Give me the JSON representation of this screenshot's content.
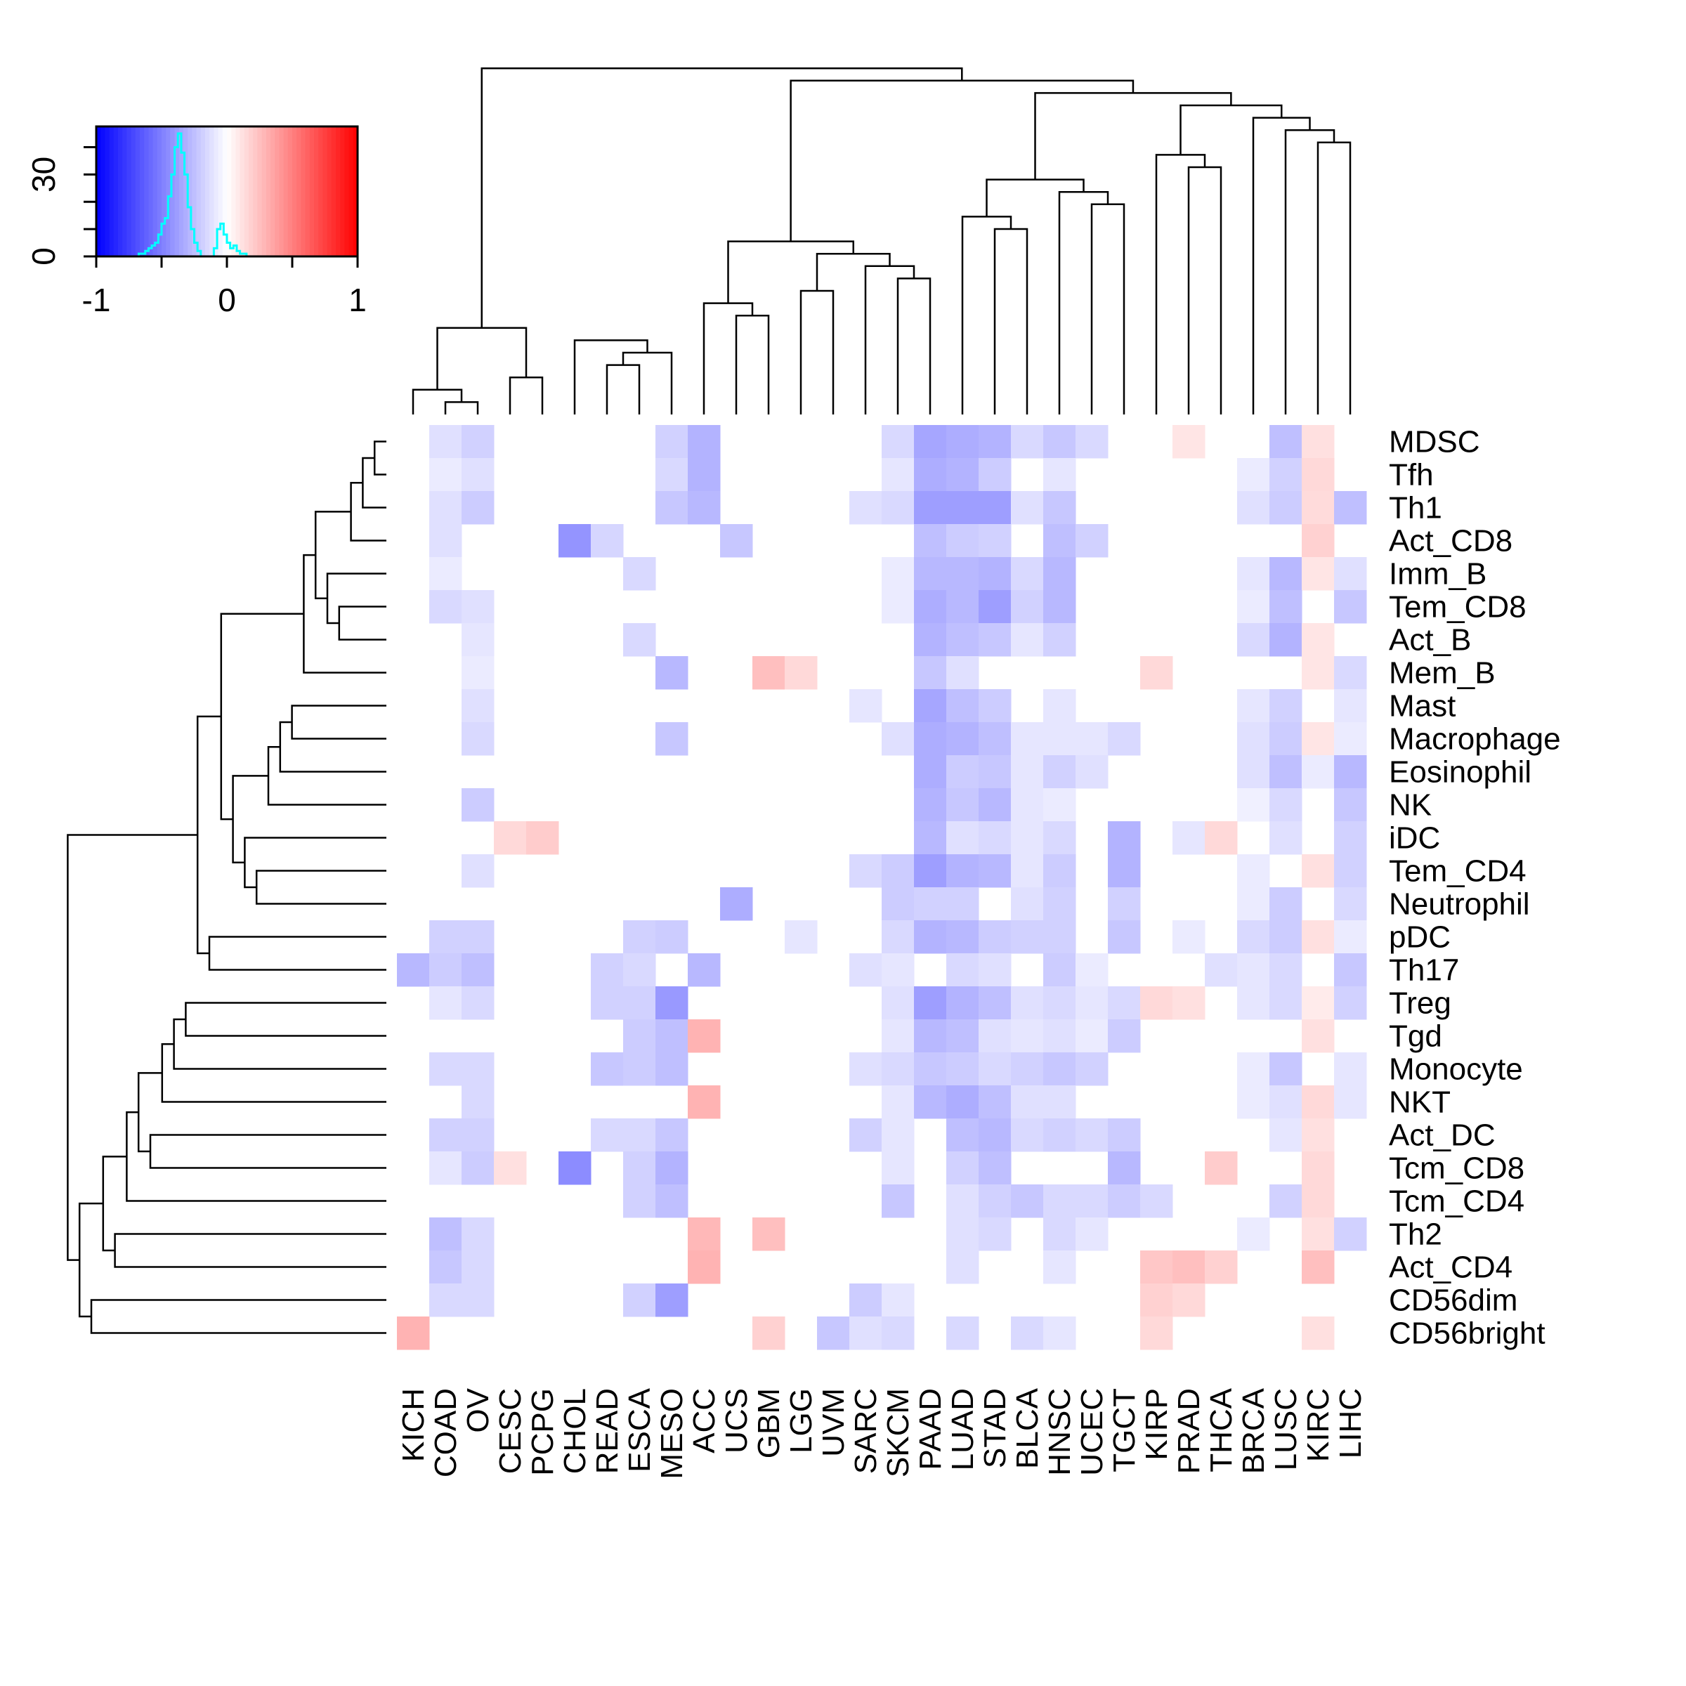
{
  "chart_data": {
    "type": "heatmap",
    "rows": [
      "MDSC",
      "Tfh",
      "Th1",
      "Act_CD8",
      "Imm_B",
      "Tem_CD8",
      "Act_B",
      "Mem_B",
      "Mast",
      "Macrophage",
      "Eosinophil",
      "NK",
      "iDC",
      "Tem_CD4",
      "Neutrophil",
      "pDC",
      "Th17",
      "Treg",
      "Tgd",
      "Monocyte",
      "NKT",
      "Act_DC",
      "Tcm_CD8",
      "Tcm_CD4",
      "Th2",
      "Act_CD4",
      "CD56dim",
      "CD56bright"
    ],
    "columns": [
      "KICH",
      "COAD",
      "OV",
      "CESC",
      "PCPG",
      "CHOL",
      "READ",
      "ESCA",
      "MESO",
      "ACC",
      "UCS",
      "GBM",
      "LGG",
      "UVM",
      "SARC",
      "SKCM",
      "PAAD",
      "LUAD",
      "STAD",
      "BLCA",
      "HNSC",
      "UCEC",
      "TGCT",
      "KIRP",
      "PRAD",
      "THCA",
      "BRCA",
      "LUSC",
      "KIRC",
      "LIHC"
    ],
    "values": [
      [
        0,
        -0.12,
        -0.18,
        0,
        0,
        0,
        0,
        0,
        -0.18,
        -0.3,
        0,
        0,
        0,
        0,
        0,
        -0.15,
        -0.35,
        -0.32,
        -0.3,
        -0.15,
        -0.22,
        -0.15,
        0,
        0,
        0.1,
        0,
        0,
        -0.25,
        0.12,
        0
      ],
      [
        0,
        -0.08,
        -0.12,
        0,
        0,
        0,
        0,
        0,
        -0.15,
        -0.3,
        0,
        0,
        0,
        0,
        0,
        -0.1,
        -0.32,
        -0.3,
        -0.2,
        0,
        -0.1,
        0,
        0,
        0,
        0,
        0,
        -0.08,
        -0.18,
        0.15,
        0
      ],
      [
        0,
        -0.12,
        -0.2,
        0,
        0,
        0,
        0,
        0,
        -0.22,
        -0.28,
        0,
        0,
        0,
        0,
        -0.12,
        -0.15,
        -0.38,
        -0.38,
        -0.38,
        -0.12,
        -0.22,
        0,
        0,
        0,
        0,
        0,
        -0.12,
        -0.2,
        0.14,
        -0.25
      ],
      [
        0,
        -0.12,
        0,
        0,
        0,
        -0.42,
        -0.16,
        0,
        0,
        0,
        -0.22,
        0,
        0,
        0,
        0,
        0,
        -0.25,
        -0.2,
        -0.18,
        0,
        -0.25,
        -0.18,
        0,
        0,
        0,
        0,
        0,
        0,
        0.18,
        0
      ],
      [
        0,
        -0.08,
        0,
        0,
        0,
        0,
        0,
        -0.15,
        0,
        0,
        0,
        0,
        0,
        0,
        0,
        -0.08,
        -0.28,
        -0.28,
        -0.3,
        -0.15,
        -0.28,
        0,
        0,
        0,
        0,
        0,
        -0.1,
        -0.28,
        0.1,
        -0.12
      ],
      [
        0,
        -0.15,
        -0.12,
        0,
        0,
        0,
        0,
        0,
        0,
        0,
        0,
        0,
        0,
        0,
        0,
        -0.08,
        -0.32,
        -0.28,
        -0.38,
        -0.18,
        -0.28,
        0,
        0,
        0,
        0,
        0,
        -0.08,
        -0.25,
        0,
        -0.22
      ],
      [
        0,
        0,
        -0.1,
        0,
        0,
        0,
        0,
        -0.15,
        0,
        0,
        0,
        0,
        0,
        0,
        0,
        0,
        -0.3,
        -0.25,
        -0.22,
        -0.1,
        -0.18,
        0,
        0,
        0,
        0,
        0,
        -0.15,
        -0.3,
        0.1,
        0
      ],
      [
        0,
        0,
        -0.08,
        0,
        0,
        0,
        0,
        0,
        -0.28,
        0,
        0,
        0.25,
        0.15,
        0,
        0,
        0,
        -0.22,
        -0.12,
        0,
        0,
        0,
        0,
        0,
        0.15,
        0,
        0,
        0,
        0,
        0.1,
        -0.15
      ],
      [
        0,
        0,
        -0.12,
        0,
        0,
        0,
        0,
        0,
        0,
        0,
        0,
        0,
        0,
        0,
        -0.1,
        0,
        -0.35,
        -0.25,
        -0.2,
        0,
        -0.1,
        0,
        0,
        0,
        0,
        0,
        -0.1,
        -0.18,
        0,
        -0.1
      ],
      [
        0,
        0,
        -0.15,
        0,
        0,
        0,
        0,
        0,
        -0.22,
        0,
        0,
        0,
        0,
        0,
        0,
        -0.12,
        -0.32,
        -0.3,
        -0.25,
        -0.1,
        -0.1,
        -0.1,
        -0.15,
        0,
        0,
        0,
        -0.12,
        -0.2,
        0.1,
        -0.08
      ],
      [
        0,
        0,
        0,
        0,
        0,
        0,
        0,
        0,
        0,
        0,
        0,
        0,
        0,
        0,
        0,
        0,
        -0.32,
        -0.2,
        -0.22,
        -0.1,
        -0.18,
        -0.12,
        0,
        0,
        0,
        0,
        -0.12,
        -0.25,
        -0.08,
        -0.28
      ],
      [
        0,
        0,
        -0.2,
        0,
        0,
        0,
        0,
        0,
        0,
        0,
        0,
        0,
        0,
        0,
        0,
        0,
        -0.3,
        -0.22,
        -0.28,
        -0.1,
        -0.08,
        0,
        0,
        0,
        0,
        0,
        -0.06,
        -0.15,
        0,
        -0.22
      ],
      [
        0,
        0,
        0,
        0.15,
        0.2,
        0,
        0,
        0,
        0,
        0,
        0,
        0,
        0,
        0,
        0,
        0,
        -0.28,
        -0.12,
        -0.15,
        -0.1,
        -0.15,
        0,
        -0.3,
        0,
        -0.1,
        0.15,
        0,
        -0.12,
        0,
        -0.18
      ],
      [
        0,
        0,
        -0.12,
        0,
        0,
        0,
        0,
        0,
        0,
        0,
        0,
        0,
        0,
        0,
        -0.15,
        -0.2,
        -0.38,
        -0.3,
        -0.28,
        -0.1,
        -0.2,
        0,
        -0.3,
        0,
        0,
        0,
        -0.08,
        0,
        0.12,
        -0.18
      ],
      [
        0,
        0,
        0,
        0,
        0,
        0,
        0,
        0,
        0,
        0,
        -0.32,
        0,
        0,
        0,
        0,
        -0.2,
        -0.18,
        -0.18,
        0,
        -0.12,
        -0.18,
        0,
        -0.18,
        0,
        0,
        0,
        -0.08,
        -0.2,
        0,
        -0.15
      ],
      [
        0,
        -0.18,
        -0.18,
        0,
        0,
        0,
        0,
        -0.18,
        -0.2,
        0,
        0,
        0,
        -0.1,
        0,
        0,
        -0.15,
        -0.3,
        -0.28,
        -0.2,
        -0.18,
        -0.18,
        0,
        -0.22,
        0,
        -0.08,
        0,
        -0.15,
        -0.2,
        0.12,
        -0.08
      ],
      [
        -0.28,
        -0.2,
        -0.25,
        0,
        0,
        0,
        -0.18,
        -0.15,
        0,
        -0.28,
        0,
        0,
        0,
        0,
        -0.12,
        -0.1,
        0,
        -0.15,
        -0.12,
        0,
        -0.2,
        -0.08,
        0,
        0,
        0,
        -0.12,
        -0.1,
        -0.15,
        0,
        -0.22
      ],
      [
        0,
        -0.1,
        -0.15,
        0,
        0,
        0,
        -0.18,
        -0.18,
        -0.4,
        0,
        0,
        0,
        0,
        0,
        0,
        -0.12,
        -0.38,
        -0.3,
        -0.25,
        -0.12,
        -0.15,
        -0.1,
        -0.15,
        0.15,
        0.12,
        0,
        -0.1,
        -0.15,
        0.08,
        -0.18
      ],
      [
        0,
        0,
        0,
        0,
        0,
        0,
        0,
        -0.2,
        -0.25,
        0.3,
        0,
        0,
        0,
        0,
        0,
        -0.1,
        -0.28,
        -0.25,
        -0.12,
        -0.1,
        -0.12,
        -0.08,
        -0.2,
        0,
        0,
        0,
        0,
        0,
        0.12,
        0
      ],
      [
        0,
        -0.15,
        -0.15,
        0,
        0,
        0,
        -0.22,
        -0.2,
        -0.25,
        0,
        0,
        0,
        0,
        0,
        -0.12,
        -0.15,
        -0.22,
        -0.2,
        -0.15,
        -0.18,
        -0.22,
        -0.18,
        0,
        0,
        0,
        0,
        -0.08,
        -0.22,
        0,
        -0.1
      ],
      [
        0,
        0,
        -0.15,
        0,
        0,
        0,
        0,
        0,
        0,
        0.3,
        0,
        0,
        0,
        0,
        0,
        -0.1,
        -0.28,
        -0.32,
        -0.25,
        -0.12,
        -0.12,
        0,
        0,
        0,
        0,
        0,
        -0.08,
        -0.12,
        0.15,
        -0.1
      ],
      [
        0,
        -0.18,
        -0.18,
        0,
        0,
        0,
        -0.15,
        -0.15,
        -0.22,
        0,
        0,
        0,
        0,
        0,
        -0.18,
        -0.1,
        0,
        -0.25,
        -0.28,
        -0.15,
        -0.18,
        -0.15,
        -0.2,
        0,
        0,
        0,
        0,
        -0.1,
        0.12,
        0
      ],
      [
        0,
        -0.1,
        -0.2,
        0.12,
        0,
        -0.45,
        0,
        -0.18,
        -0.3,
        0,
        0,
        0,
        0,
        0,
        0,
        -0.1,
        0,
        -0.18,
        -0.25,
        0,
        0,
        0,
        -0.28,
        0,
        0,
        0.2,
        0,
        0,
        0.15,
        0
      ],
      [
        0,
        0,
        0,
        0,
        0,
        0,
        0,
        -0.18,
        -0.25,
        0,
        0,
        0,
        0,
        0,
        0,
        -0.22,
        0,
        -0.12,
        -0.18,
        -0.22,
        -0.15,
        -0.15,
        -0.2,
        -0.15,
        0,
        0,
        0,
        -0.18,
        0.15,
        0
      ],
      [
        0,
        -0.25,
        -0.15,
        0,
        0,
        0,
        0,
        0,
        0,
        0.28,
        0,
        0.25,
        0,
        0,
        0,
        0,
        0,
        -0.12,
        -0.15,
        0,
        -0.15,
        -0.1,
        0,
        0,
        0,
        0,
        -0.08,
        0,
        0.12,
        -0.18
      ],
      [
        0,
        -0.22,
        -0.15,
        0,
        0,
        0,
        0,
        0,
        0,
        0.3,
        0,
        0,
        0,
        0,
        0,
        0,
        0,
        -0.12,
        0,
        0,
        -0.1,
        0,
        0,
        0.22,
        0.25,
        0.18,
        0,
        0,
        0.25,
        0
      ],
      [
        0,
        -0.15,
        -0.15,
        0,
        0,
        0,
        0,
        -0.18,
        -0.38,
        0,
        0,
        0,
        0,
        0,
        -0.2,
        -0.1,
        0,
        0,
        0,
        0,
        0,
        0,
        0,
        0.18,
        0.15,
        0,
        0,
        0,
        0,
        0
      ],
      [
        0.3,
        0,
        0,
        0,
        0,
        0,
        0,
        0,
        0,
        0,
        0,
        0.18,
        0,
        -0.22,
        -0.12,
        -0.15,
        0,
        -0.15,
        0,
        -0.15,
        -0.1,
        0,
        0,
        0.15,
        0,
        0,
        0,
        0,
        0.12,
        0
      ]
    ],
    "color_scale": {
      "min": -1,
      "max": 1,
      "low_color": "#0000ff",
      "mid_color": "#ffffff",
      "high_color": "#ff0000"
    },
    "histogram_color": "#00ffff",
    "key": {
      "x_ticks": [
        "-1",
        "0",
        "1"
      ],
      "y_ticks": [
        "0",
        "30"
      ],
      "histogram": [
        0,
        0,
        0,
        0,
        0,
        0,
        0,
        0,
        0,
        0,
        0,
        0,
        0,
        1,
        1,
        2,
        3,
        4,
        5,
        8,
        12,
        14,
        22,
        30,
        40,
        45,
        38,
        30,
        18,
        10,
        5,
        2,
        0,
        0,
        0,
        0,
        3,
        10,
        12,
        8,
        5,
        3,
        4,
        2,
        1,
        1,
        0,
        0,
        0,
        0,
        0,
        0,
        0,
        0,
        0,
        0,
        0,
        0,
        0,
        0,
        0,
        0,
        0,
        0,
        0,
        0,
        0,
        0,
        0,
        0,
        0,
        0,
        0,
        0,
        0,
        0,
        0,
        0,
        0,
        0
      ],
      "histogram_max": 45
    },
    "row_dendrogram": [
      [
        0,
        1
      ],
      [
        2,
        28
      ],
      [
        29,
        3
      ],
      [
        5,
        6
      ],
      [
        4,
        31
      ],
      [
        32,
        30
      ],
      [
        33,
        7
      ],
      [
        8,
        9
      ],
      [
        35,
        10
      ],
      [
        36,
        11
      ],
      [
        14,
        13
      ],
      [
        38,
        12
      ],
      [
        37,
        39
      ],
      [
        34,
        40
      ],
      [
        15,
        16
      ],
      [
        41,
        42
      ],
      [
        17,
        18
      ],
      [
        44,
        19
      ],
      [
        45,
        20
      ],
      [
        21,
        22
      ],
      [
        46,
        47
      ],
      [
        48,
        23
      ],
      [
        24,
        25
      ],
      [
        49,
        50
      ],
      [
        26,
        27
      ],
      [
        51,
        52
      ],
      [
        43,
        53
      ]
    ],
    "col_dendrogram": [
      [
        1,
        2
      ],
      [
        0,
        30
      ],
      [
        3,
        4
      ],
      [
        6,
        7
      ],
      [
        8,
        33
      ],
      [
        5,
        34
      ],
      [
        31,
        32
      ],
      [
        10,
        11
      ],
      [
        9,
        37
      ],
      [
        12,
        13
      ],
      [
        15,
        16
      ],
      [
        14,
        40
      ],
      [
        39,
        41
      ],
      [
        38,
        42
      ],
      [
        18,
        19
      ],
      [
        17,
        44
      ],
      [
        21,
        22
      ],
      [
        20,
        46
      ],
      [
        45,
        47
      ],
      [
        24,
        25
      ],
      [
        23,
        49
      ],
      [
        28,
        29
      ],
      [
        27,
        51
      ],
      [
        26,
        52
      ],
      [
        50,
        53
      ],
      [
        48,
        54
      ],
      [
        43,
        55
      ],
      [
        36,
        56
      ]
    ]
  }
}
